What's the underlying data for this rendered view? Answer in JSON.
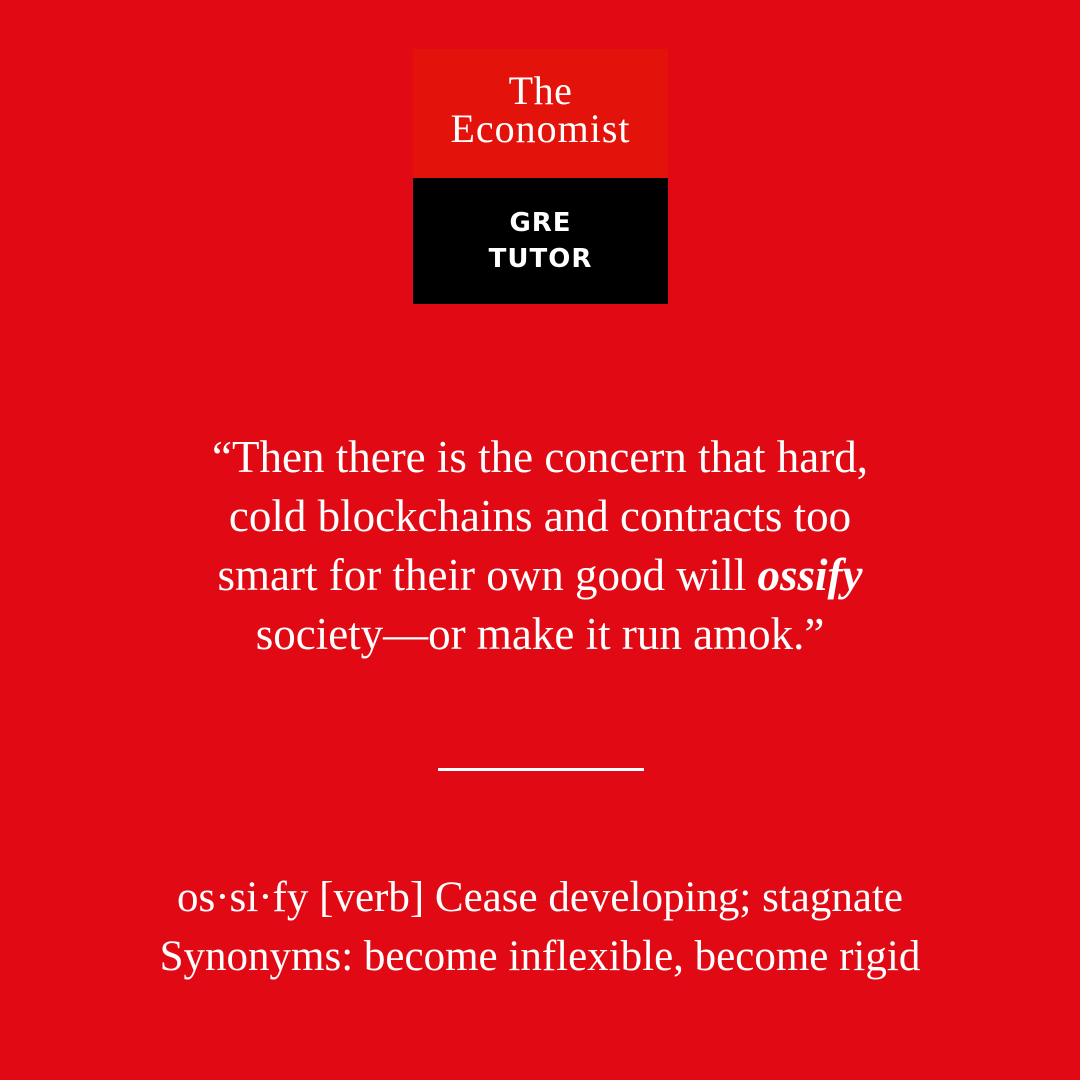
{
  "logo": {
    "line1": "The",
    "line2": "Economist",
    "sub1": "GRE",
    "sub2": "TUTOR"
  },
  "quote": {
    "line1": "“Then there is the concern that hard,",
    "line2": "cold blockchains and contracts too",
    "line3_before": "smart for their own good will ",
    "line3_word": "ossify",
    "line4": "society—or make it run amok.”"
  },
  "definition": {
    "line1": "os·si·fy [verb] Cease developing; stagnate",
    "line2": "Synonyms: become inflexible, become rigid"
  },
  "colors": {
    "background": "#e10a14",
    "logo_top": "#e3120b",
    "logo_bottom": "#000000",
    "text": "#ffffff"
  }
}
